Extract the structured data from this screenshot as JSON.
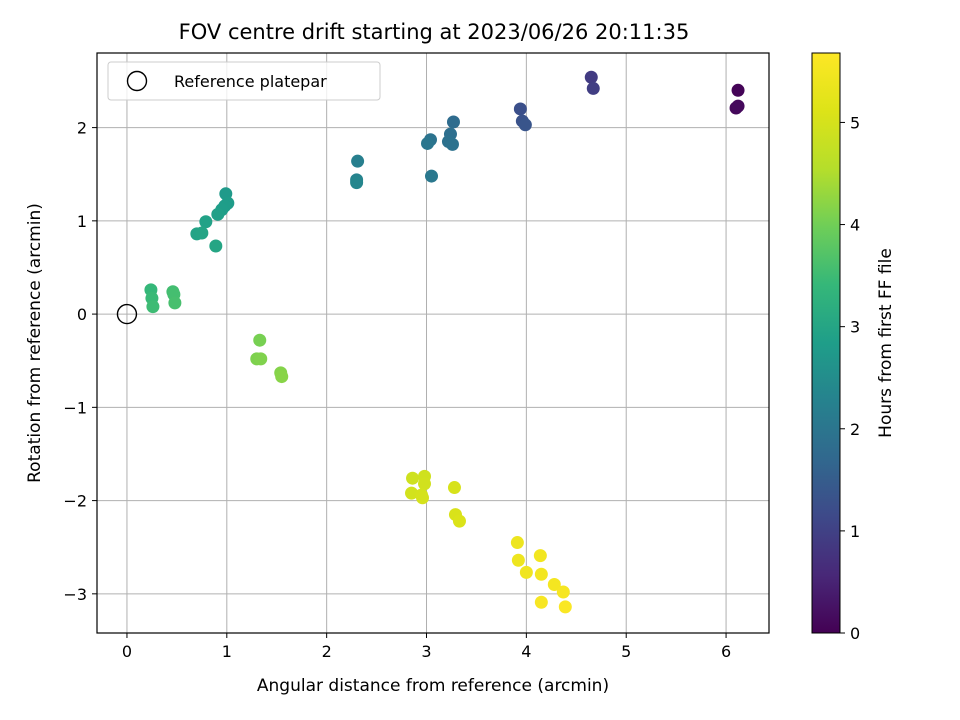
{
  "chart_data": {
    "type": "scatter",
    "title": "FOV centre drift starting at 2023/06/26 20:11:35",
    "xlabel": "Angular distance from reference (arcmin)",
    "ylabel": "Rotation from reference (arcmin)",
    "xlim": [
      -0.3,
      6.43
    ],
    "ylim": [
      -3.42,
      2.8
    ],
    "xticks": [
      0,
      1,
      2,
      3,
      4,
      5,
      6
    ],
    "yticks": [
      -3,
      -2,
      -1,
      0,
      1,
      2
    ],
    "xtick_labels": [
      "0",
      "1",
      "2",
      "3",
      "4",
      "5",
      "6"
    ],
    "ytick_labels": [
      "−3",
      "−2",
      "−1",
      "0",
      "1",
      "2"
    ],
    "grid": true,
    "legend": {
      "placement": "top-left",
      "entries": [
        {
          "label": "Reference platepar",
          "marker": "open-circle",
          "x": 0,
          "y": 0
        }
      ]
    },
    "colorbar": {
      "label": "Hours from first FF file",
      "colormap": "viridis",
      "range": [
        0,
        5.68
      ],
      "ticks": [
        0,
        1,
        2,
        3,
        4,
        5
      ],
      "tick_labels": [
        "0",
        "1",
        "2",
        "3",
        "4",
        "5"
      ]
    },
    "points": [
      {
        "x": 6.12,
        "y": 2.4,
        "c": 0.05
      },
      {
        "x": 6.1,
        "y": 2.21,
        "c": 0.1
      },
      {
        "x": 6.12,
        "y": 2.23,
        "c": 0.12
      },
      {
        "x": 4.65,
        "y": 2.54,
        "c": 0.9
      },
      {
        "x": 4.67,
        "y": 2.42,
        "c": 0.95
      },
      {
        "x": 3.94,
        "y": 2.2,
        "c": 1.25
      },
      {
        "x": 3.96,
        "y": 2.07,
        "c": 1.3
      },
      {
        "x": 3.99,
        "y": 2.03,
        "c": 1.35
      },
      {
        "x": 3.27,
        "y": 2.06,
        "c": 1.8
      },
      {
        "x": 3.24,
        "y": 1.93,
        "c": 1.85
      },
      {
        "x": 3.22,
        "y": 1.85,
        "c": 1.9
      },
      {
        "x": 3.26,
        "y": 1.82,
        "c": 1.92
      },
      {
        "x": 3.04,
        "y": 1.87,
        "c": 1.95
      },
      {
        "x": 3.01,
        "y": 1.83,
        "c": 2.0
      },
      {
        "x": 3.05,
        "y": 1.48,
        "c": 2.05
      },
      {
        "x": 2.31,
        "y": 1.64,
        "c": 2.2
      },
      {
        "x": 2.3,
        "y": 1.44,
        "c": 2.3
      },
      {
        "x": 2.3,
        "y": 1.41,
        "c": 2.35
      },
      {
        "x": 0.99,
        "y": 1.29,
        "c": 2.75
      },
      {
        "x": 1.01,
        "y": 1.19,
        "c": 2.8
      },
      {
        "x": 0.98,
        "y": 1.16,
        "c": 2.82
      },
      {
        "x": 0.95,
        "y": 1.12,
        "c": 2.85
      },
      {
        "x": 0.91,
        "y": 1.07,
        "c": 2.88
      },
      {
        "x": 0.79,
        "y": 0.99,
        "c": 2.92
      },
      {
        "x": 0.7,
        "y": 0.86,
        "c": 2.95
      },
      {
        "x": 0.75,
        "y": 0.87,
        "c": 2.97
      },
      {
        "x": 0.89,
        "y": 0.73,
        "c": 3.0
      },
      {
        "x": 0.24,
        "y": 0.26,
        "c": 3.4
      },
      {
        "x": 0.25,
        "y": 0.17,
        "c": 3.45
      },
      {
        "x": 0.26,
        "y": 0.08,
        "c": 3.5
      },
      {
        "x": 0.46,
        "y": 0.24,
        "c": 3.55
      },
      {
        "x": 0.47,
        "y": 0.21,
        "c": 3.57
      },
      {
        "x": 0.48,
        "y": 0.12,
        "c": 3.6
      },
      {
        "x": 1.33,
        "y": -0.28,
        "c": 4.05
      },
      {
        "x": 1.3,
        "y": -0.48,
        "c": 4.1
      },
      {
        "x": 1.34,
        "y": -0.48,
        "c": 4.12
      },
      {
        "x": 1.54,
        "y": -0.63,
        "c": 4.15
      },
      {
        "x": 1.55,
        "y": -0.67,
        "c": 4.18
      },
      {
        "x": 2.86,
        "y": -1.76,
        "c": 4.9
      },
      {
        "x": 2.98,
        "y": -1.74,
        "c": 4.92
      },
      {
        "x": 2.98,
        "y": -1.82,
        "c": 4.94
      },
      {
        "x": 2.85,
        "y": -1.92,
        "c": 4.96
      },
      {
        "x": 2.95,
        "y": -1.94,
        "c": 4.98
      },
      {
        "x": 2.96,
        "y": -1.97,
        "c": 5.0
      },
      {
        "x": 3.28,
        "y": -1.86,
        "c": 5.02
      },
      {
        "x": 3.29,
        "y": -2.15,
        "c": 5.05
      },
      {
        "x": 3.33,
        "y": -2.22,
        "c": 5.08
      },
      {
        "x": 3.91,
        "y": -2.45,
        "c": 5.4
      },
      {
        "x": 3.92,
        "y": -2.64,
        "c": 5.42
      },
      {
        "x": 4.0,
        "y": -2.77,
        "c": 5.45
      },
      {
        "x": 4.14,
        "y": -2.59,
        "c": 5.48
      },
      {
        "x": 4.15,
        "y": -2.79,
        "c": 5.5
      },
      {
        "x": 4.28,
        "y": -2.9,
        "c": 5.52
      },
      {
        "x": 4.37,
        "y": -2.98,
        "c": 5.55
      },
      {
        "x": 4.15,
        "y": -3.09,
        "c": 5.58
      },
      {
        "x": 4.39,
        "y": -3.14,
        "c": 5.62
      }
    ]
  }
}
